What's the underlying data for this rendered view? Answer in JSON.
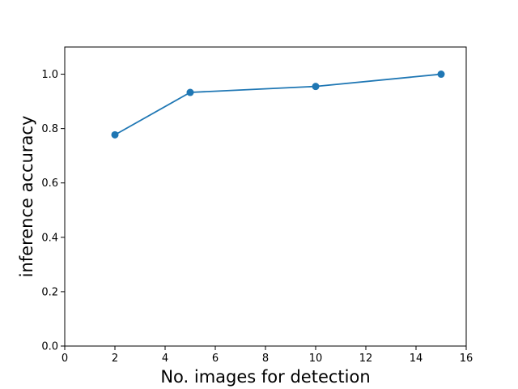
{
  "chart_data": {
    "type": "line",
    "title": "",
    "xlabel": "No. images for detection",
    "ylabel": "inference accuracy",
    "x": [
      2,
      5,
      10,
      15
    ],
    "series": [
      {
        "values": [
          0.777,
          0.933,
          0.955,
          1.0
        ],
        "color": "#1f77b4",
        "marker": "circle"
      }
    ],
    "xlim": [
      0,
      16
    ],
    "ylim": [
      0.0,
      1.1
    ],
    "xticks": [
      0,
      2,
      4,
      6,
      8,
      10,
      12,
      14,
      16
    ],
    "xtick_labels": [
      "0",
      "2",
      "4",
      "6",
      "8",
      "10",
      "12",
      "14",
      "16"
    ],
    "yticks": [
      0.0,
      0.2,
      0.4,
      0.6,
      0.8,
      1.0
    ],
    "ytick_labels": [
      "0.0",
      "0.2",
      "0.4",
      "0.6",
      "0.8",
      "1.0"
    ],
    "grid": false,
    "legend": "none"
  }
}
